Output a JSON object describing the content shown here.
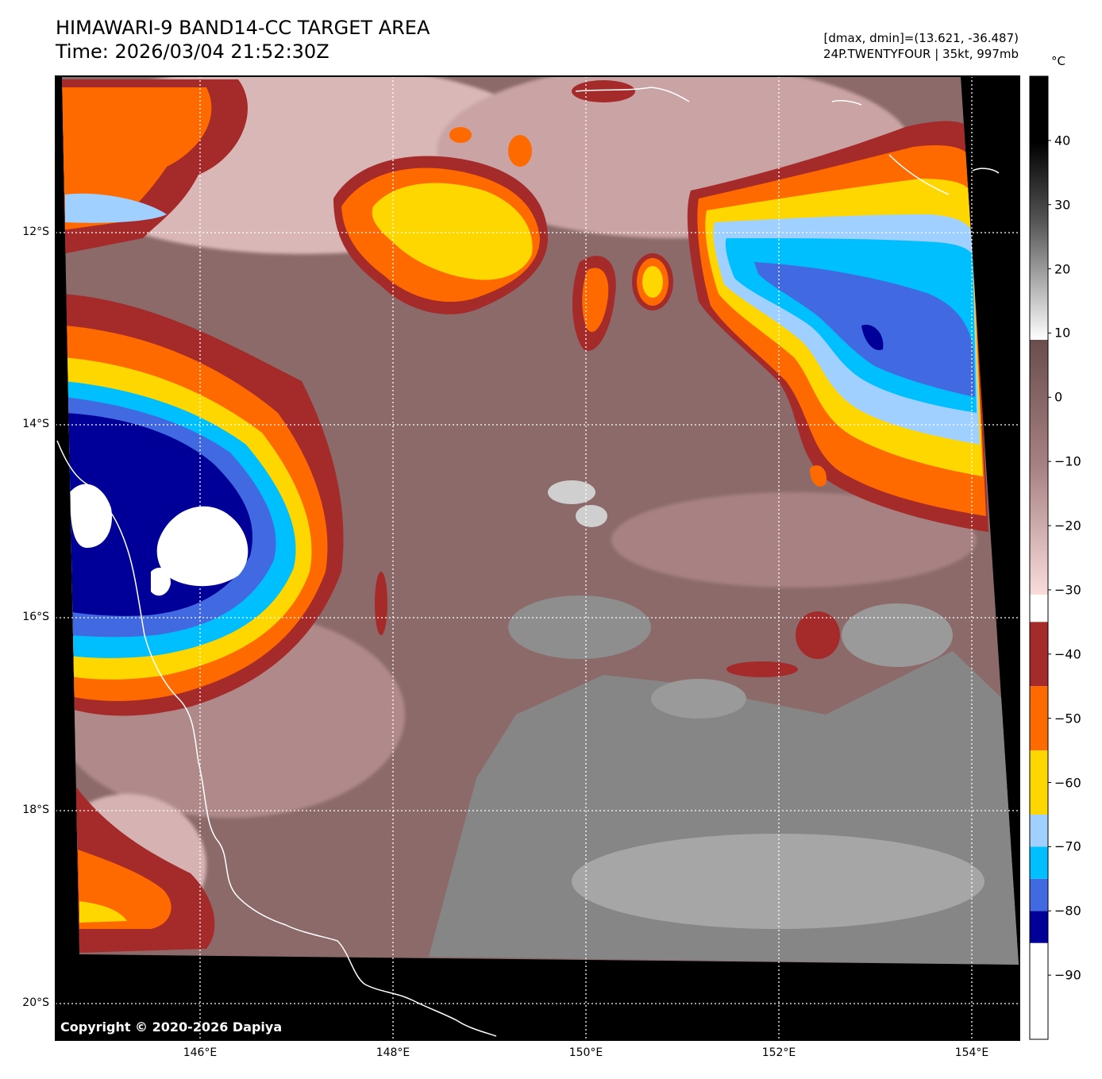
{
  "header": {
    "title": "HIMAWARI-9 BAND14-CC TARGET AREA",
    "time": "Time: 2026/03/04 21:52:30Z",
    "range": "[dmax, dmin]=(13.621, -36.487)",
    "storm": "24P.TWENTYFOUR | 35kt, 997mb"
  },
  "colorbar": {
    "unit": "°C",
    "ticks": [
      "40",
      "30",
      "20",
      "10",
      "0",
      "−10",
      "−20",
      "−30",
      "−40",
      "−50",
      "−60",
      "−70",
      "−80",
      "−90"
    ],
    "bands": [
      {
        "color": "#ffffff"
      },
      {
        "color": "#000099"
      },
      {
        "color": "#4169e1"
      },
      {
        "color": "#00bfff"
      },
      {
        "color": "#a0d0ff"
      },
      {
        "color": "#ffd700"
      },
      {
        "color": "#ff6a00"
      },
      {
        "color": "#a52a2a"
      }
    ]
  },
  "map": {
    "lat_labels": [
      "12°S",
      "14°S",
      "16°S",
      "18°S",
      "20°S"
    ],
    "lon_labels": [
      "146°E",
      "148°E",
      "150°E",
      "152°E",
      "154°E"
    ],
    "copyright": "Copyright © 2020-2026 Dapiya"
  }
}
